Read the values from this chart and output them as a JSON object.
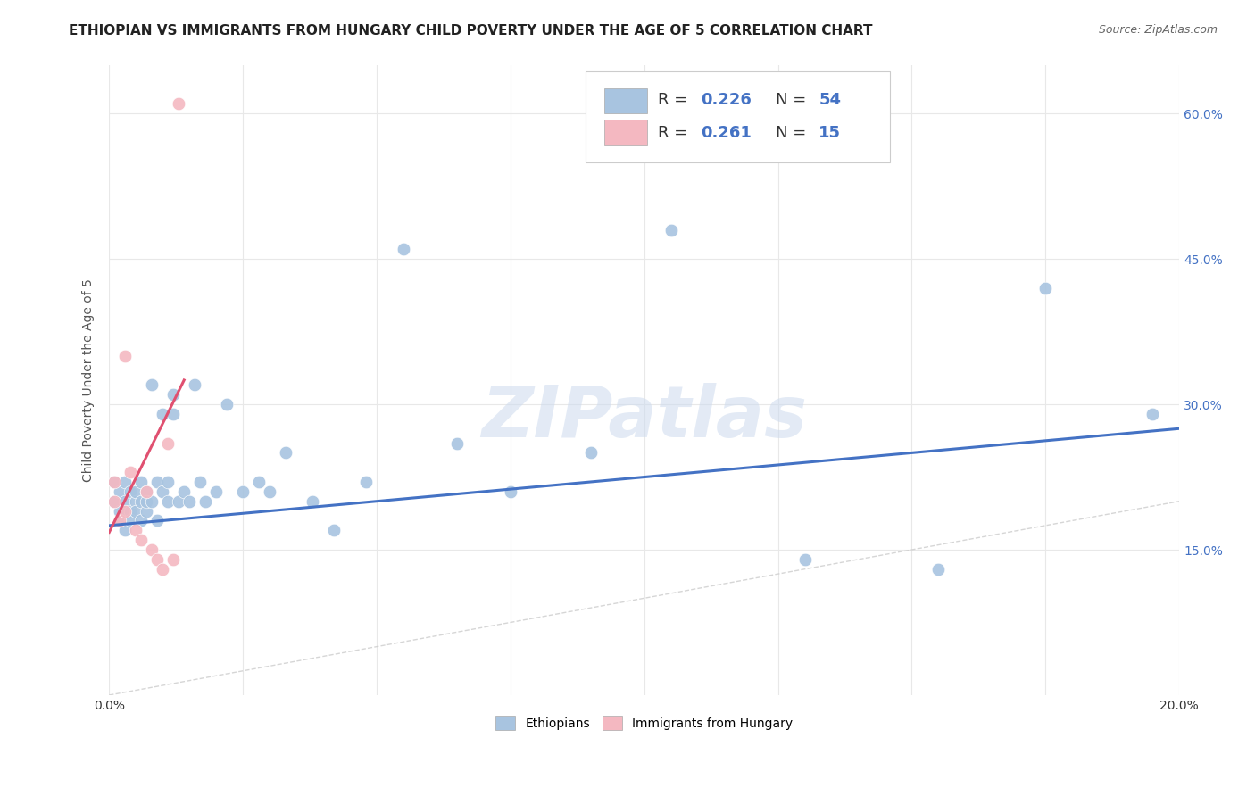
{
  "title": "ETHIOPIAN VS IMMIGRANTS FROM HUNGARY CHILD POVERTY UNDER THE AGE OF 5 CORRELATION CHART",
  "source": "Source: ZipAtlas.com",
  "ylabel": "Child Poverty Under the Age of 5",
  "xlim": [
    0.0,
    0.2
  ],
  "ylim": [
    0.0,
    0.65
  ],
  "watermark": "ZIPatlas",
  "ethiopian_color": "#a8c4e0",
  "hungarian_color": "#f4b8c1",
  "trendline_eth_color": "#4472c4",
  "trendline_hun_color": "#e05070",
  "diagonal_color": "#cccccc",
  "background_color": "#ffffff",
  "grid_color": "#e8e8e8",
  "title_fontsize": 11,
  "label_fontsize": 10,
  "tick_fontsize": 10,
  "legend_fontsize": 13,
  "eth_x": [
    0.001,
    0.001,
    0.002,
    0.002,
    0.002,
    0.003,
    0.003,
    0.003,
    0.004,
    0.004,
    0.004,
    0.005,
    0.005,
    0.005,
    0.006,
    0.006,
    0.006,
    0.007,
    0.007,
    0.007,
    0.008,
    0.008,
    0.009,
    0.009,
    0.01,
    0.01,
    0.011,
    0.011,
    0.012,
    0.012,
    0.013,
    0.014,
    0.015,
    0.016,
    0.017,
    0.018,
    0.02,
    0.022,
    0.025,
    0.028,
    0.03,
    0.033,
    0.038,
    0.042,
    0.048,
    0.055,
    0.065,
    0.075,
    0.09,
    0.105,
    0.13,
    0.155,
    0.175,
    0.195
  ],
  "eth_y": [
    0.2,
    0.22,
    0.19,
    0.21,
    0.18,
    0.2,
    0.22,
    0.17,
    0.19,
    0.21,
    0.18,
    0.2,
    0.21,
    0.19,
    0.2,
    0.22,
    0.18,
    0.19,
    0.21,
    0.2,
    0.32,
    0.2,
    0.22,
    0.18,
    0.29,
    0.21,
    0.2,
    0.22,
    0.31,
    0.29,
    0.2,
    0.21,
    0.2,
    0.32,
    0.22,
    0.2,
    0.21,
    0.3,
    0.21,
    0.22,
    0.21,
    0.25,
    0.2,
    0.17,
    0.22,
    0.46,
    0.26,
    0.21,
    0.25,
    0.48,
    0.14,
    0.13,
    0.42,
    0.29
  ],
  "hun_x": [
    0.001,
    0.001,
    0.002,
    0.003,
    0.003,
    0.004,
    0.005,
    0.006,
    0.007,
    0.008,
    0.009,
    0.01,
    0.011,
    0.012,
    0.013
  ],
  "hun_y": [
    0.2,
    0.22,
    0.18,
    0.19,
    0.35,
    0.23,
    0.17,
    0.16,
    0.21,
    0.15,
    0.14,
    0.13,
    0.26,
    0.14,
    0.61
  ],
  "eth_trend_x": [
    0.0,
    0.2
  ],
  "eth_trend_y": [
    0.175,
    0.275
  ],
  "hun_trend_x": [
    0.0,
    0.014
  ],
  "hun_trend_y": [
    0.168,
    0.325
  ]
}
